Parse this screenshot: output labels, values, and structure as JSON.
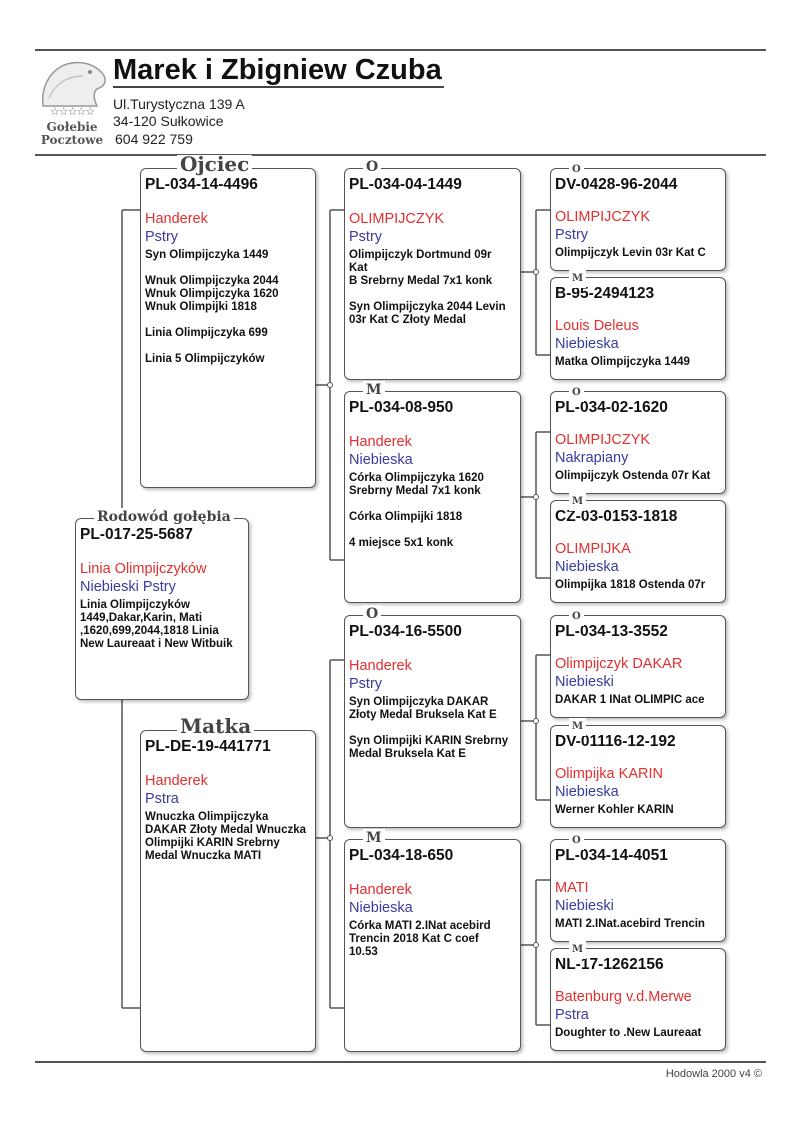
{
  "header": {
    "owner": "Marek i Zbigniew Czuba",
    "address_lines": [
      "Ul.Turystyczna 139 A",
      "34-120 Sułkowice",
      "604 922 759"
    ],
    "logo_text": [
      "Gołebie",
      "Pocztowe"
    ],
    "logo_stars": "☆☆☆☆☆"
  },
  "pedigree": {
    "subject": {
      "label": "Rodowód gołębia",
      "ring": "PL-017-25-5687",
      "name": "Linia Olimpijczyków",
      "color": "Niebieski Pstry",
      "notes": "Linia Olimpijczyków\n1449,Dakar,Karin, Mati\n,1620,699,2044,1818 Linia\nNew Laureaat i New Witbuik"
    },
    "father": {
      "label": "Ojciec",
      "ring": "PL-034-14-4496",
      "name": "Handerek",
      "color": "Pstry",
      "notes": "Syn Olimpijczyka 1449\n\nWnuk Olimpijczyka 2044\nWnuk Olimpijczyka 1620\nWnuk Olimpijki 1818\n\nLinia Olimpijczyka 699\n\nLinia 5  Olimpijczyków"
    },
    "mother": {
      "label": "Matka",
      "ring": "PL-DE-19-441771",
      "name": "Handerek",
      "color": "Pstra",
      "notes": "Wnuczka  Olimpijczyka\nDAKAR Złoty Medal Wnuczka\nOlimpijki KARIN  Srebrny\nMedal Wnuczka MATI"
    },
    "gen2": [
      {
        "label": "O",
        "ring": "PL-034-04-1449",
        "name": "OLIMPIJCZYK",
        "color": "Pstry",
        "notes": "Olimpijczyk Dortmund 09r\nKat\nB Srebrny Medal 7x1 konk\n\nSyn Olimpijczyka 2044 Levin\n03r Kat C Złoty Medal"
      },
      {
        "label": "M",
        "ring": "PL-034-08-950",
        "name": "Handerek",
        "color": "Niebieska",
        "notes": "Córka Olimpijczyka 1620\nSrebrny Medal 7x1 konk\n\nCórka Olimpijki 1818\n\n4 miejsce 5x1 konk"
      },
      {
        "label": "O",
        "ring": "PL-034-16-5500",
        "name": "Handerek",
        "color": "Pstry",
        "notes": "Syn Olimpijczyka DAKAR\nZłoty Medal Bruksela Kat E\n\nSyn Olimpijki KARIN Srebrny\nMedal Bruksela Kat E"
      },
      {
        "label": "M",
        "ring": "PL-034-18-650",
        "name": "Handerek",
        "color": "Niebieska",
        "notes": "Córka MATI 2.INat acebird\nTrencin 2018 Kat C coef\n10.53"
      }
    ],
    "gen3": [
      {
        "label": "O",
        "ring": "DV-0428-96-2044",
        "name": "OLIMPIJCZYK",
        "color": "Pstry",
        "notes": "Olimpijczyk Levin 03r Kat C"
      },
      {
        "label": "M",
        "ring": "B-95-2494123",
        "name": "Louis Deleus",
        "color": "Niebieska",
        "notes": "Matka Olimpijczyka 1449"
      },
      {
        "label": "O",
        "ring": "PL-034-02-1620",
        "name": "OLIMPIJCZYK",
        "color": "Nakrapiany",
        "notes": "Olimpijczyk Ostenda 07r Kat"
      },
      {
        "label": "M",
        "ring": "CZ-03-0153-1818",
        "name": "OLIMPIJKA",
        "color": "Niebieska",
        "notes": "Olimpijka 1818 Ostenda 07r"
      },
      {
        "label": "O",
        "ring": "PL-034-13-3552",
        "name": "Olimpijczyk DAKAR",
        "color": "Niebieski",
        "notes": "DAKAR  1 INat OLIMPIC ace"
      },
      {
        "label": "M",
        "ring": "DV-01116-12-192",
        "name": "Olimpijka KARIN",
        "color": "Niebieska",
        "notes": "Werner Kohler KARIN"
      },
      {
        "label": "O",
        "ring": "PL-034-14-4051",
        "name": "MATI",
        "color": "Niebieski",
        "notes": "MATI 2.INat.acebird Trencin"
      },
      {
        "label": "M",
        "ring": "NL-17-1262156",
        "name": "Batenburg v.d.Merwe",
        "color": "Pstra",
        "notes": "Doughter to .New Laureaat"
      }
    ]
  },
  "footer": {
    "text": "Hodowla 2000 v4 ©"
  },
  "colors": {
    "name": "#e03030",
    "color_text": "#3a3aa0",
    "line": "#555555"
  }
}
